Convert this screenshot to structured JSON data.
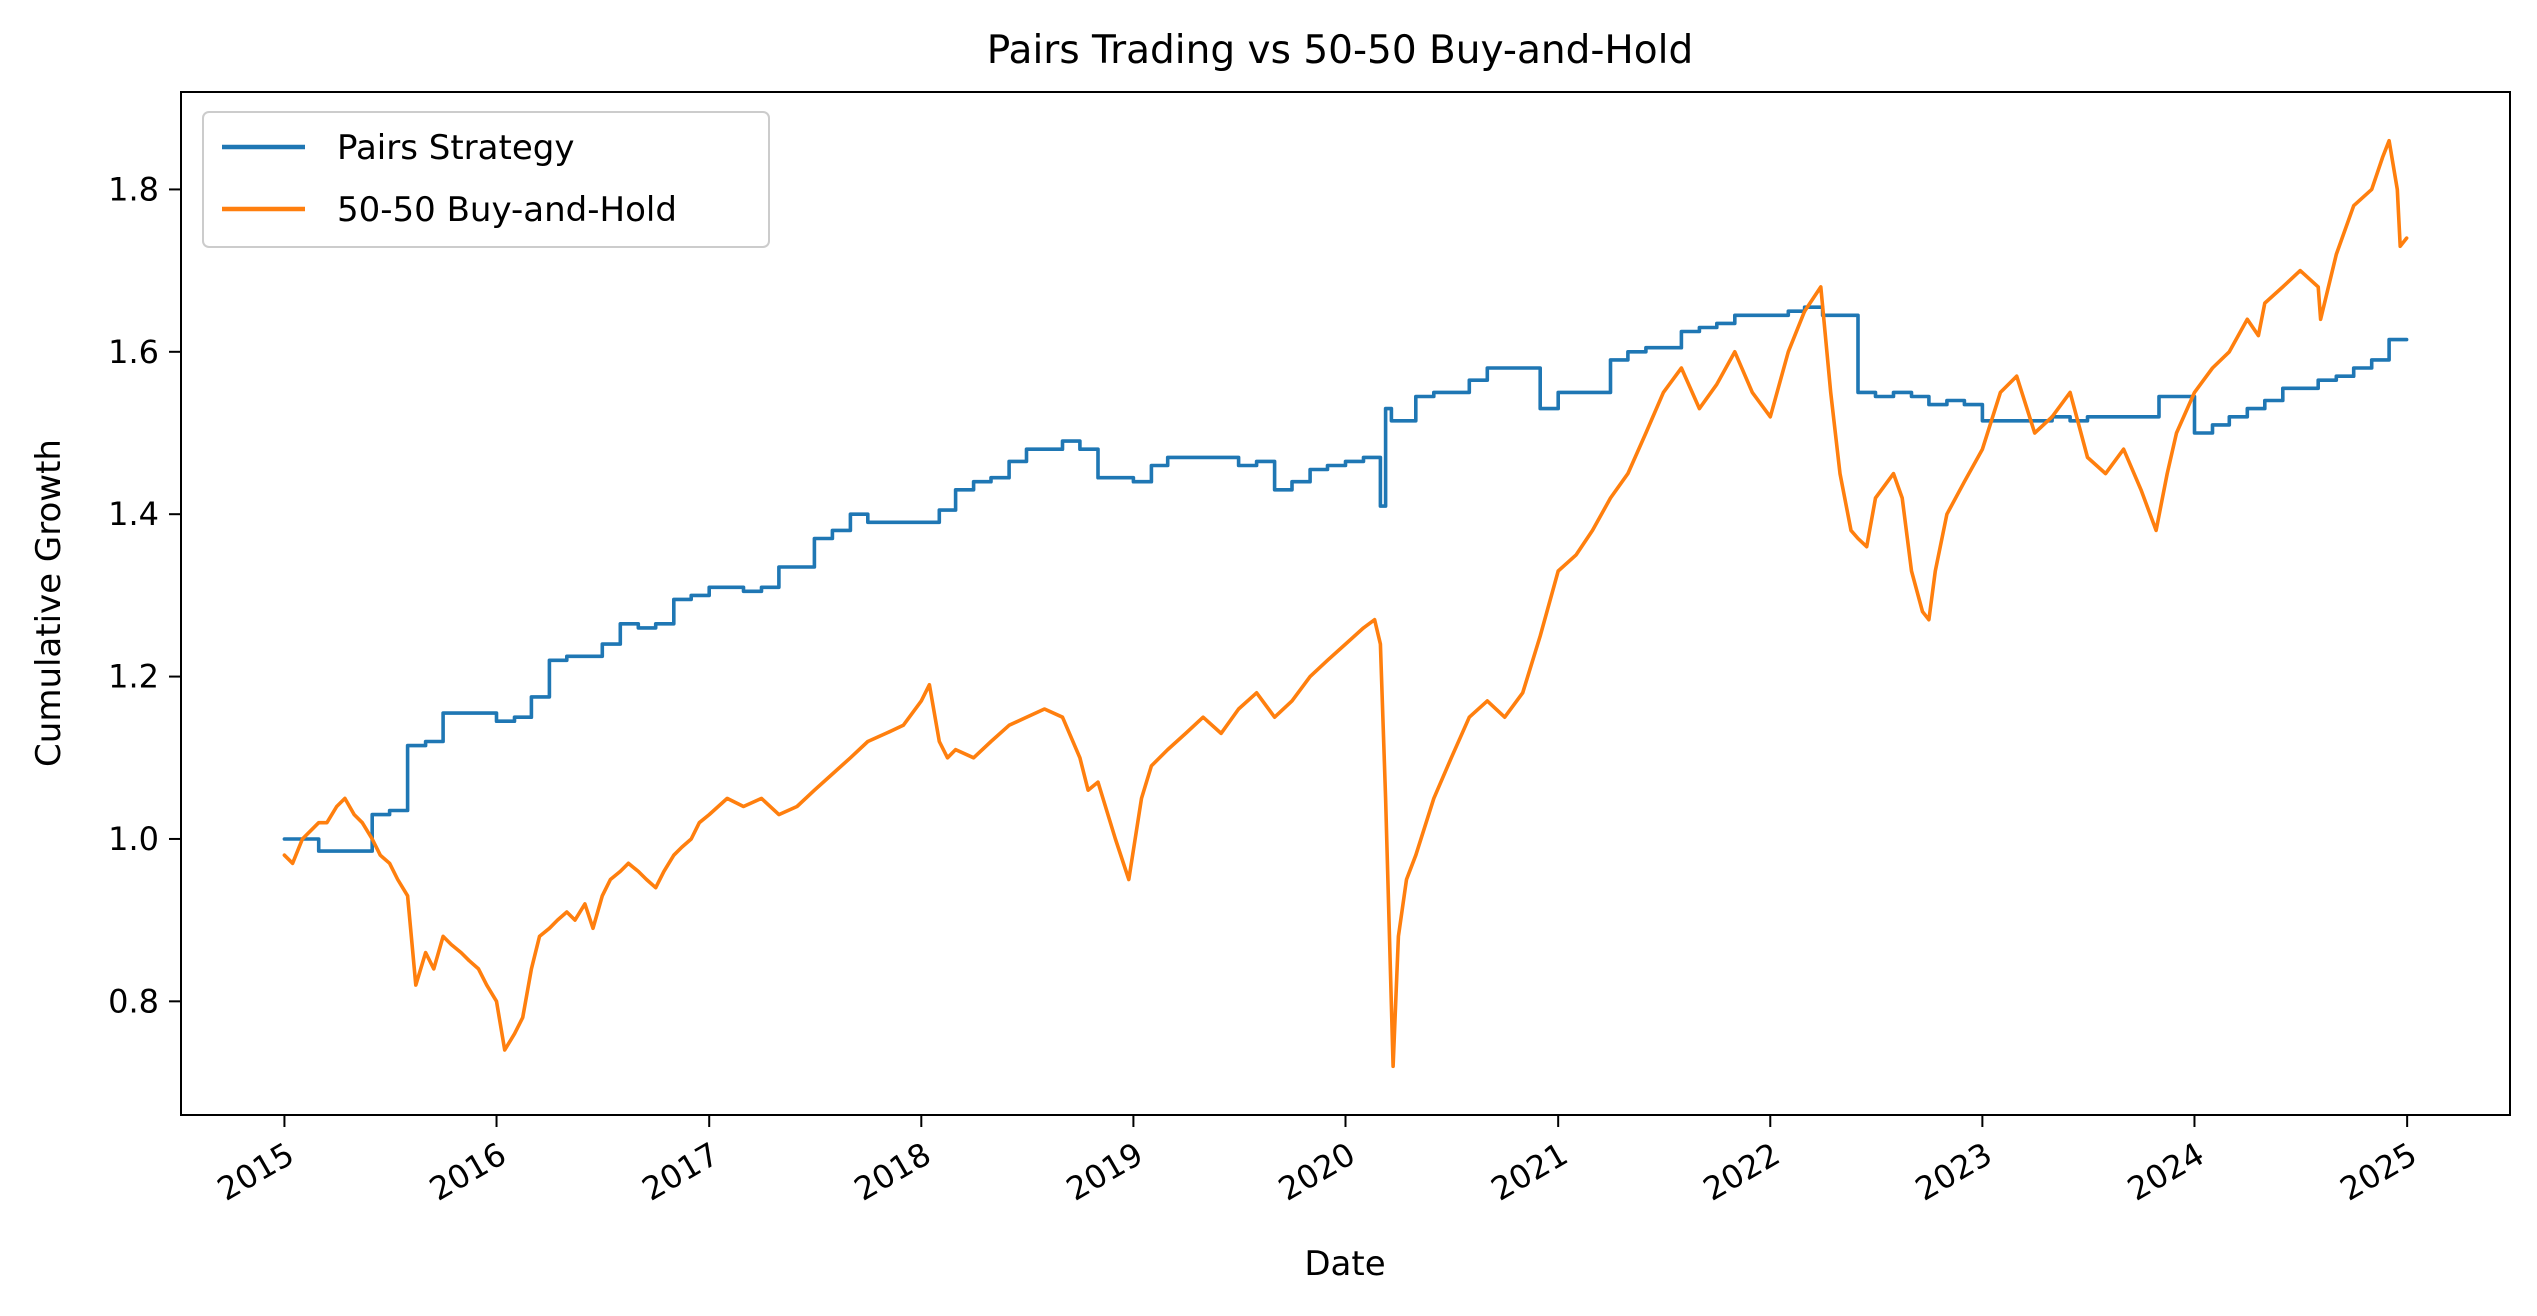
{
  "chart_data": {
    "type": "line",
    "title": "Pairs Trading vs 50-50 Buy-and-Hold",
    "xlabel": "Date",
    "ylabel": "Cumulative Growth",
    "xlim": [
      "2014-07-07",
      "2025-06-27"
    ],
    "ylim": [
      0.66,
      1.92
    ],
    "x_ticks": [
      "2015-01-01",
      "2016-01-01",
      "2017-01-01",
      "2018-01-01",
      "2019-01-01",
      "2020-01-01",
      "2021-01-01",
      "2022-01-01",
      "2023-01-01",
      "2024-01-01",
      "2025-01-01"
    ],
    "x_tick_labels": [
      "2015",
      "2016",
      "2017",
      "2018",
      "2019",
      "2020",
      "2021",
      "2022",
      "2023",
      "2024",
      "2025"
    ],
    "y_ticks": [
      0.8,
      1.0,
      1.2,
      1.4,
      1.6,
      1.8
    ],
    "y_tick_labels": [
      "0.8",
      "1.0",
      "1.2",
      "1.4",
      "1.6",
      "1.8"
    ],
    "grid": false,
    "legend_position": "top-left",
    "series": [
      {
        "name": "Pairs Strategy",
        "color": "#1f77b4",
        "step": true,
        "x": [
          "2015-01-01",
          "2015-02-01",
          "2015-03-01",
          "2015-04-01",
          "2015-05-01",
          "2015-06-01",
          "2015-07-01",
          "2015-08-01",
          "2015-09-01",
          "2015-10-01",
          "2015-11-01",
          "2016-01-01",
          "2016-02-01",
          "2016-03-01",
          "2016-04-01",
          "2016-05-01",
          "2016-06-01",
          "2016-07-01",
          "2016-08-01",
          "2016-09-01",
          "2016-10-01",
          "2016-11-01",
          "2016-12-01",
          "2017-01-01",
          "2017-03-01",
          "2017-04-01",
          "2017-05-01",
          "2017-06-01",
          "2017-07-01",
          "2017-08-01",
          "2017-09-01",
          "2017-10-01",
          "2017-11-01",
          "2018-01-01",
          "2018-02-01",
          "2018-03-01",
          "2018-04-01",
          "2018-05-01",
          "2018-06-01",
          "2018-07-01",
          "2018-08-01",
          "2018-09-01",
          "2018-10-01",
          "2018-11-01",
          "2018-12-01",
          "2019-01-01",
          "2019-02-01",
          "2019-03-01",
          "2019-04-01",
          "2019-06-01",
          "2019-07-01",
          "2019-08-01",
          "2019-09-01",
          "2019-10-01",
          "2019-11-01",
          "2019-12-01",
          "2020-01-01",
          "2020-02-01",
          "2020-03-01",
          "2020-03-10",
          "2020-03-20",
          "2020-04-01",
          "2020-05-01",
          "2020-06-01",
          "2020-08-01",
          "2020-09-01",
          "2020-11-01",
          "2020-12-01",
          "2021-01-01",
          "2021-02-01",
          "2021-03-01",
          "2021-04-01",
          "2021-05-01",
          "2021-06-01",
          "2021-08-01",
          "2021-09-01",
          "2021-10-01",
          "2021-11-01",
          "2022-01-01",
          "2022-02-01",
          "2022-03-01",
          "2022-04-01",
          "2022-05-01",
          "2022-06-01",
          "2022-07-01",
          "2022-08-01",
          "2022-09-01",
          "2022-10-01",
          "2022-11-01",
          "2022-12-01",
          "2023-01-01",
          "2023-03-01",
          "2023-05-01",
          "2023-06-01",
          "2023-07-01",
          "2023-09-01",
          "2023-11-01",
          "2023-12-01",
          "2024-01-01",
          "2024-02-01",
          "2024-03-01",
          "2024-04-01",
          "2024-05-01",
          "2024-06-01",
          "2024-08-01",
          "2024-09-01",
          "2024-10-01",
          "2024-11-01",
          "2024-12-01",
          "2024-12-31"
        ],
        "y": [
          1.0,
          1.0,
          0.985,
          0.985,
          0.985,
          1.03,
          1.035,
          1.115,
          1.12,
          1.155,
          1.155,
          1.145,
          1.15,
          1.175,
          1.22,
          1.225,
          1.225,
          1.24,
          1.265,
          1.26,
          1.265,
          1.295,
          1.3,
          1.31,
          1.305,
          1.31,
          1.335,
          1.335,
          1.37,
          1.38,
          1.4,
          1.39,
          1.39,
          1.39,
          1.405,
          1.43,
          1.44,
          1.445,
          1.465,
          1.48,
          1.48,
          1.49,
          1.48,
          1.445,
          1.445,
          1.44,
          1.46,
          1.47,
          1.47,
          1.47,
          1.46,
          1.465,
          1.43,
          1.44,
          1.455,
          1.46,
          1.465,
          1.47,
          1.41,
          1.53,
          1.515,
          1.515,
          1.545,
          1.55,
          1.565,
          1.58,
          1.58,
          1.53,
          1.55,
          1.55,
          1.55,
          1.59,
          1.6,
          1.605,
          1.625,
          1.63,
          1.635,
          1.645,
          1.645,
          1.65,
          1.655,
          1.645,
          1.645,
          1.55,
          1.545,
          1.55,
          1.545,
          1.535,
          1.54,
          1.535,
          1.515,
          1.515,
          1.52,
          1.515,
          1.52,
          1.52,
          1.545,
          1.545,
          1.5,
          1.51,
          1.52,
          1.53,
          1.54,
          1.555,
          1.565,
          1.57,
          1.58,
          1.59,
          1.615,
          1.615
        ]
      },
      {
        "name": "50-50 Buy-and-Hold",
        "color": "#ff7f0e",
        "step": false,
        "x": [
          "2015-01-01",
          "2015-01-15",
          "2015-02-01",
          "2015-02-15",
          "2015-03-01",
          "2015-03-15",
          "2015-04-01",
          "2015-04-15",
          "2015-05-01",
          "2015-05-15",
          "2015-06-01",
          "2015-06-15",
          "2015-07-01",
          "2015-07-15",
          "2015-08-01",
          "2015-08-15",
          "2015-09-01",
          "2015-09-15",
          "2015-10-01",
          "2015-10-15",
          "2015-11-01",
          "2015-11-15",
          "2015-12-01",
          "2015-12-15",
          "2016-01-01",
          "2016-01-15",
          "2016-02-01",
          "2016-02-15",
          "2016-03-01",
          "2016-03-15",
          "2016-04-01",
          "2016-04-15",
          "2016-05-01",
          "2016-05-15",
          "2016-06-01",
          "2016-06-15",
          "2016-07-01",
          "2016-07-15",
          "2016-08-01",
          "2016-08-15",
          "2016-09-01",
          "2016-09-15",
          "2016-10-01",
          "2016-10-15",
          "2016-11-01",
          "2016-11-15",
          "2016-12-01",
          "2016-12-15",
          "2017-01-01",
          "2017-02-01",
          "2017-03-01",
          "2017-04-01",
          "2017-05-01",
          "2017-06-01",
          "2017-07-01",
          "2017-08-01",
          "2017-09-01",
          "2017-10-01",
          "2017-11-01",
          "2017-12-01",
          "2018-01-01",
          "2018-01-15",
          "2018-02-01",
          "2018-02-15",
          "2018-03-01",
          "2018-04-01",
          "2018-05-01",
          "2018-06-01",
          "2018-07-01",
          "2018-08-01",
          "2018-09-01",
          "2018-10-01",
          "2018-10-15",
          "2018-11-01",
          "2018-12-01",
          "2018-12-24",
          "2019-01-15",
          "2019-02-01",
          "2019-03-01",
          "2019-04-01",
          "2019-05-01",
          "2019-06-01",
          "2019-07-01",
          "2019-08-01",
          "2019-09-01",
          "2019-10-01",
          "2019-11-01",
          "2019-12-01",
          "2020-01-01",
          "2020-02-01",
          "2020-02-20",
          "2020-03-01",
          "2020-03-10",
          "2020-03-23",
          "2020-04-01",
          "2020-04-15",
          "2020-05-01",
          "2020-06-01",
          "2020-07-01",
          "2020-08-01",
          "2020-09-01",
          "2020-10-01",
          "2020-11-01",
          "2020-12-01",
          "2021-01-01",
          "2021-02-01",
          "2021-03-01",
          "2021-04-01",
          "2021-05-01",
          "2021-06-01",
          "2021-07-01",
          "2021-08-01",
          "2021-09-01",
          "2021-10-01",
          "2021-11-01",
          "2021-12-01",
          "2022-01-01",
          "2022-02-01",
          "2022-03-01",
          "2022-03-29",
          "2022-04-15",
          "2022-05-01",
          "2022-05-20",
          "2022-06-01",
          "2022-06-16",
          "2022-07-01",
          "2022-08-01",
          "2022-08-16",
          "2022-09-01",
          "2022-09-20",
          "2022-10-01",
          "2022-10-12",
          "2022-11-01",
          "2022-12-01",
          "2023-01-01",
          "2023-02-01",
          "2023-03-01",
          "2023-04-01",
          "2023-05-01",
          "2023-06-01",
          "2023-07-01",
          "2023-08-01",
          "2023-09-01",
          "2023-10-01",
          "2023-10-27",
          "2023-11-15",
          "2023-12-01",
          "2024-01-01",
          "2024-02-01",
          "2024-03-01",
          "2024-04-01",
          "2024-04-20",
          "2024-05-01",
          "2024-06-01",
          "2024-07-01",
          "2024-08-01",
          "2024-08-05",
          "2024-09-01",
          "2024-10-01",
          "2024-11-01",
          "2024-11-20",
          "2024-12-01",
          "2024-12-15",
          "2024-12-20",
          "2024-12-31"
        ],
        "y": [
          0.98,
          0.97,
          1.0,
          1.01,
          1.02,
          1.02,
          1.04,
          1.05,
          1.03,
          1.02,
          1.0,
          0.98,
          0.97,
          0.95,
          0.93,
          0.82,
          0.86,
          0.84,
          0.88,
          0.87,
          0.86,
          0.85,
          0.84,
          0.82,
          0.8,
          0.74,
          0.76,
          0.78,
          0.84,
          0.88,
          0.89,
          0.9,
          0.91,
          0.9,
          0.92,
          0.89,
          0.93,
          0.95,
          0.96,
          0.97,
          0.96,
          0.95,
          0.94,
          0.96,
          0.98,
          0.99,
          1.0,
          1.02,
          1.03,
          1.05,
          1.04,
          1.05,
          1.03,
          1.04,
          1.06,
          1.08,
          1.1,
          1.12,
          1.13,
          1.14,
          1.17,
          1.19,
          1.12,
          1.1,
          1.11,
          1.1,
          1.12,
          1.14,
          1.15,
          1.16,
          1.15,
          1.1,
          1.06,
          1.07,
          1.0,
          0.95,
          1.05,
          1.09,
          1.11,
          1.13,
          1.15,
          1.13,
          1.16,
          1.18,
          1.15,
          1.17,
          1.2,
          1.22,
          1.24,
          1.26,
          1.27,
          1.24,
          1.05,
          0.72,
          0.88,
          0.95,
          0.98,
          1.05,
          1.1,
          1.15,
          1.17,
          1.15,
          1.18,
          1.25,
          1.33,
          1.35,
          1.38,
          1.42,
          1.45,
          1.5,
          1.55,
          1.58,
          1.53,
          1.56,
          1.6,
          1.55,
          1.52,
          1.6,
          1.65,
          1.68,
          1.55,
          1.45,
          1.38,
          1.37,
          1.36,
          1.42,
          1.45,
          1.42,
          1.33,
          1.28,
          1.27,
          1.33,
          1.4,
          1.44,
          1.48,
          1.55,
          1.57,
          1.5,
          1.52,
          1.55,
          1.47,
          1.45,
          1.48,
          1.43,
          1.38,
          1.45,
          1.5,
          1.55,
          1.58,
          1.6,
          1.64,
          1.62,
          1.66,
          1.68,
          1.7,
          1.68,
          1.64,
          1.72,
          1.78,
          1.8,
          1.84,
          1.86,
          1.8,
          1.73,
          1.74
        ]
      }
    ]
  }
}
